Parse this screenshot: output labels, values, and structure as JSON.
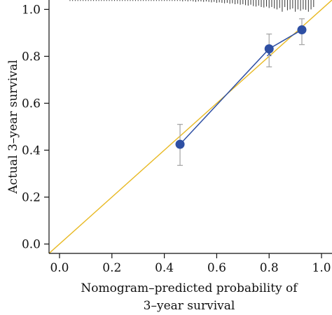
{
  "chart_data": {
    "type": "scatter",
    "title": "",
    "xlabel_lines": [
      "Nomogram–predicted probability of",
      "3–year survival"
    ],
    "ylabel": "Actual 3–year survival",
    "xlim": [
      -0.04,
      1.04
    ],
    "ylim": [
      -0.04,
      1.04
    ],
    "x_ticks": [
      0.0,
      0.2,
      0.4,
      0.6,
      0.8,
      1.0
    ],
    "x_tick_labels": [
      "0.0",
      "0.2",
      "0.4",
      "0.6",
      "0.8",
      "1.0"
    ],
    "y_ticks": [
      0.0,
      0.2,
      0.4,
      0.6,
      0.8,
      1.0
    ],
    "y_tick_labels": [
      "0.0",
      "0.2",
      "0.4",
      "0.6",
      "0.8",
      "1.0"
    ],
    "grid": false,
    "reference_line": {
      "from": [
        -0.04,
        -0.04
      ],
      "to": [
        1.04,
        1.04
      ],
      "color": "#E8B923"
    },
    "series": [
      {
        "kind": "observed",
        "color": "#2E4FA3",
        "points": [
          {
            "x": 0.46,
            "y": 0.425,
            "err_low": 0.335,
            "err_high": 0.51
          },
          {
            "x": 0.8,
            "y": 0.832,
            "err_low": 0.755,
            "err_high": 0.895
          },
          {
            "x": 0.925,
            "y": 0.913,
            "err_low": 0.85,
            "err_high": 0.96
          }
        ]
      },
      {
        "kind": "bias_corrected",
        "color": "#2E4FA3",
        "points": [
          {
            "x": 0.46,
            "y": 0.418
          },
          {
            "x": 0.8,
            "y": 0.81
          },
          {
            "x": 0.925,
            "y": 0.905
          }
        ]
      }
    ],
    "errorbar_color": "#A8A8A8",
    "rug_top": {
      "color": "#333333",
      "x": [
        0.04,
        0.05,
        0.06,
        0.07,
        0.08,
        0.09,
        0.1,
        0.11,
        0.12,
        0.13,
        0.14,
        0.15,
        0.16,
        0.17,
        0.18,
        0.19,
        0.2,
        0.21,
        0.22,
        0.23,
        0.24,
        0.25,
        0.26,
        0.27,
        0.28,
        0.29,
        0.3,
        0.31,
        0.32,
        0.33,
        0.34,
        0.35,
        0.36,
        0.37,
        0.38,
        0.39,
        0.4,
        0.41,
        0.42,
        0.43,
        0.44,
        0.45,
        0.46,
        0.47,
        0.48,
        0.49,
        0.5,
        0.51,
        0.52,
        0.53,
        0.54,
        0.55,
        0.56,
        0.57,
        0.58,
        0.59,
        0.6,
        0.61,
        0.62,
        0.63,
        0.64,
        0.65,
        0.66,
        0.67,
        0.68,
        0.69,
        0.7,
        0.71,
        0.72,
        0.73,
        0.74,
        0.75,
        0.76,
        0.77,
        0.78,
        0.79,
        0.8,
        0.81,
        0.82,
        0.83,
        0.84,
        0.85,
        0.86,
        0.87,
        0.88,
        0.89,
        0.9,
        0.91,
        0.92,
        0.93,
        0.94,
        0.95,
        0.96,
        0.97
      ],
      "len": [
        0.004,
        0.004,
        0.004,
        0.004,
        0.004,
        0.004,
        0.004,
        0.004,
        0.004,
        0.004,
        0.004,
        0.004,
        0.004,
        0.004,
        0.004,
        0.004,
        0.004,
        0.004,
        0.004,
        0.004,
        0.004,
        0.004,
        0.004,
        0.004,
        0.004,
        0.004,
        0.004,
        0.004,
        0.004,
        0.004,
        0.004,
        0.004,
        0.004,
        0.004,
        0.004,
        0.004,
        0.004,
        0.004,
        0.004,
        0.004,
        0.004,
        0.004,
        0.004,
        0.006,
        0.004,
        0.006,
        0.004,
        0.006,
        0.008,
        0.006,
        0.006,
        0.008,
        0.006,
        0.008,
        0.01,
        0.008,
        0.012,
        0.01,
        0.012,
        0.014,
        0.012,
        0.016,
        0.014,
        0.018,
        0.016,
        0.02,
        0.018,
        0.022,
        0.024,
        0.02,
        0.026,
        0.028,
        0.024,
        0.03,
        0.032,
        0.028,
        0.034,
        0.03,
        0.036,
        0.04,
        0.034,
        0.05,
        0.03,
        0.044,
        0.04,
        0.036,
        0.05,
        0.04,
        0.046,
        0.04,
        0.042,
        0.05,
        0.04,
        0.03
      ]
    }
  }
}
